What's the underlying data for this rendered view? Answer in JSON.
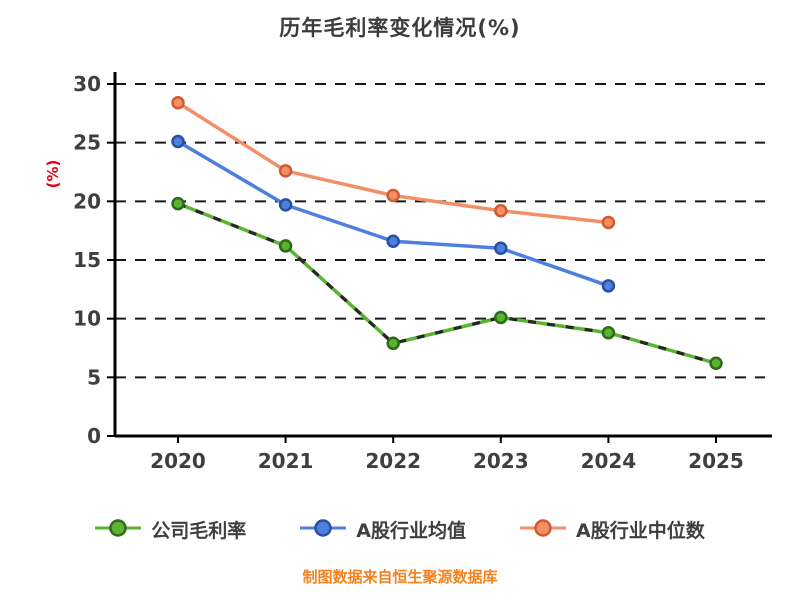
{
  "title": "历年毛利率变化情况(%)",
  "footer": "制图数据来自恒生聚源数据库",
  "footer_color": "#f5821f",
  "chart_data": {
    "type": "line",
    "title": "历年毛利率变化情况(%)",
    "categories": [
      "2020",
      "2021",
      "2022",
      "2023",
      "2024",
      "2025"
    ],
    "series": [
      {
        "name": "公司毛利率",
        "color": "#5bb431",
        "edge": "#2e6b18",
        "dash_overlay": true,
        "values": [
          19.8,
          16.2,
          7.9,
          10.1,
          8.8,
          6.2
        ]
      },
      {
        "name": "A股行业均值",
        "color": "#4d7ee0",
        "edge": "#27509e",
        "dash_overlay": false,
        "values": [
          25.1,
          19.7,
          16.6,
          16.0,
          12.8,
          null
        ]
      },
      {
        "name": "A股行业中位数",
        "color": "#f28e68",
        "edge": "#cf5b2e",
        "dash_overlay": false,
        "values": [
          28.4,
          22.6,
          20.5,
          19.2,
          18.2,
          null
        ]
      }
    ],
    "xlabel": "",
    "ylabel": "(%)",
    "ylabel_color": "#e60012",
    "ylim": [
      0,
      30
    ],
    "yticks": [
      0,
      5,
      10,
      15,
      20,
      25,
      30
    ],
    "grid": "dashed-horizontal",
    "legend_position": "bottom",
    "axis_color": "#000000",
    "tick_label_color": "#3f3f3f"
  }
}
